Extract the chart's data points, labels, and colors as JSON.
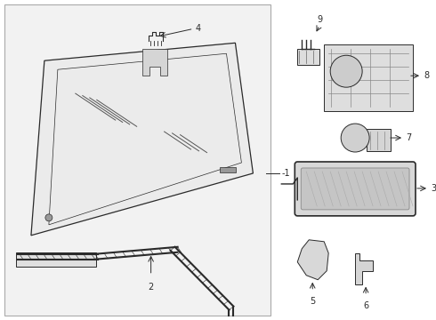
{
  "bg": "#f0f0f0",
  "white": "#ffffff",
  "lc": "#2a2a2a",
  "gray_fill": "#e8e8e8",
  "light_gray": "#d0d0d0",
  "figsize": [
    4.9,
    3.6
  ],
  "dpi": 100
}
